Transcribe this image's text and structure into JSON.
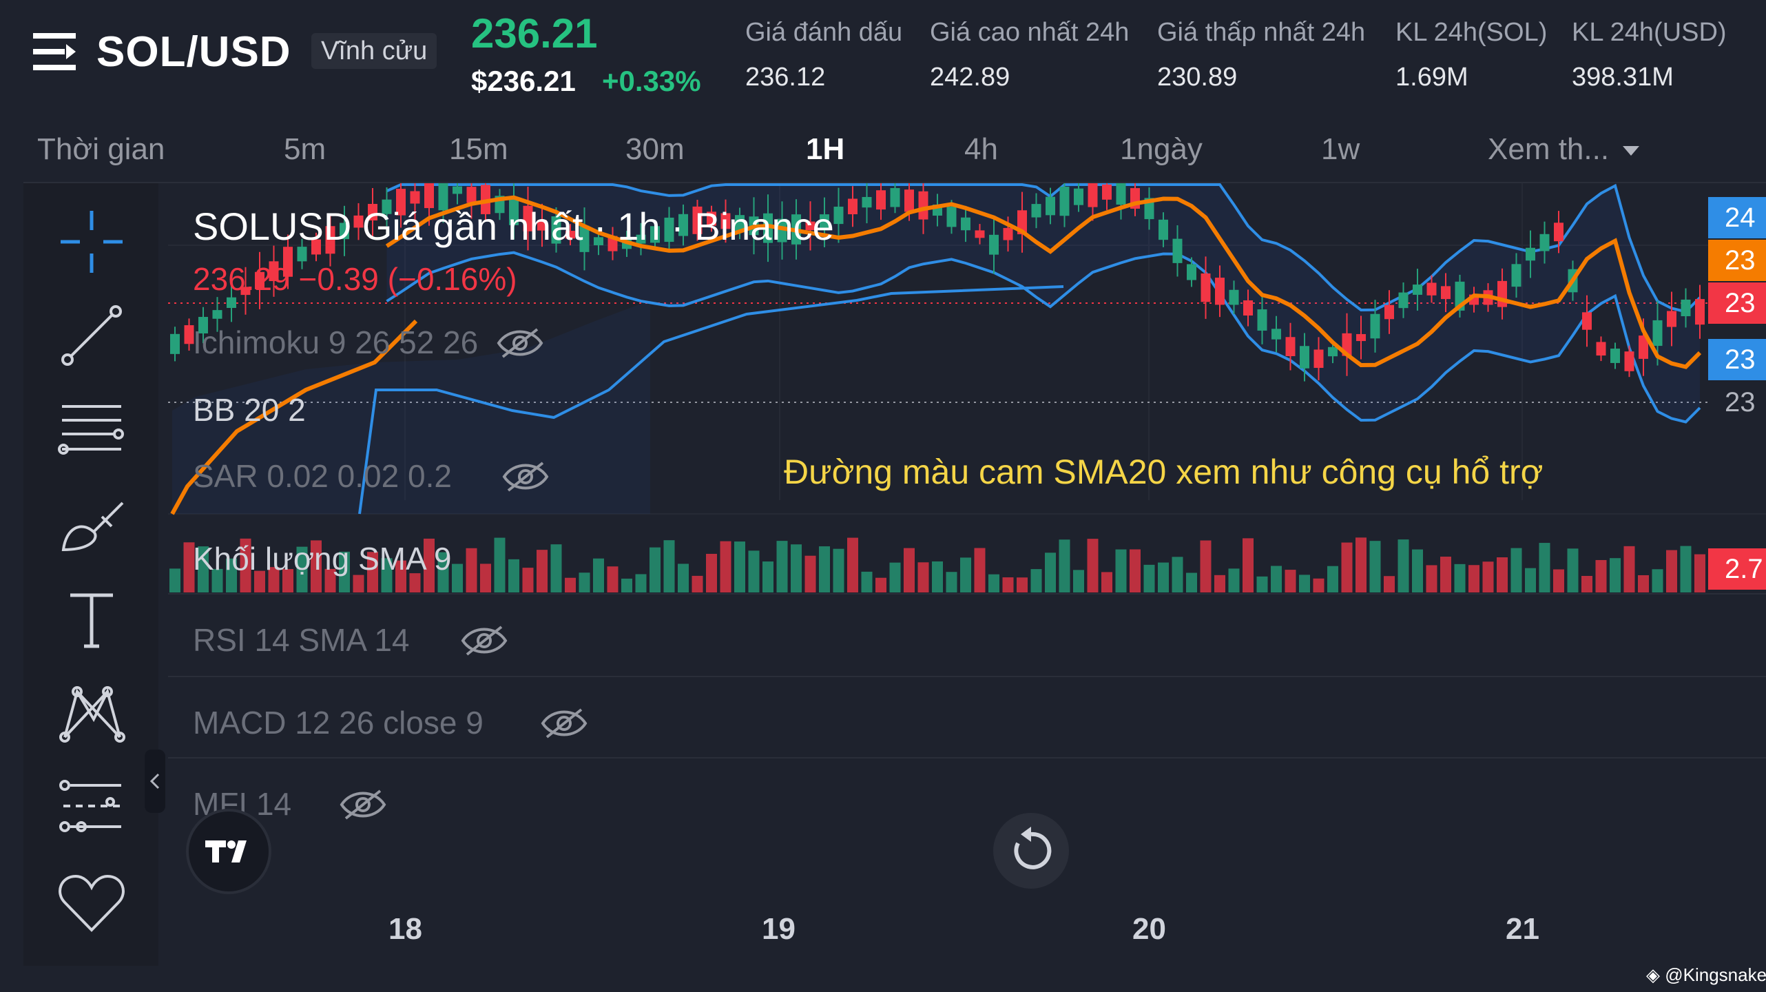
{
  "header": {
    "symbol": "SOL/USD",
    "contract_type": "Vĩnh cửu",
    "last_price": "236.21",
    "price_usd": "$236.21",
    "change_pct": "+0.33%",
    "stats": [
      {
        "label": "Giá đánh dấu",
        "value": "236.12"
      },
      {
        "label": "Giá cao nhất 24h",
        "value": "242.89"
      },
      {
        "label": "Giá thấp nhất 24h",
        "value": "230.89"
      },
      {
        "label": "KL 24h(SOL)",
        "value": "1.69M"
      },
      {
        "label": "KL 24h(USD)",
        "value": "398.31M"
      }
    ]
  },
  "intervals": {
    "time_label": "Thời gian",
    "items": [
      "5m",
      "15m",
      "30m",
      "1H",
      "4h",
      "1ngày",
      "1w"
    ],
    "active": "1H",
    "more": "Xem th..."
  },
  "toolbar": {
    "icons": [
      "crosshair-icon",
      "trend-line-icon",
      "horizontal-lines-icon",
      "brush-icon",
      "text-icon",
      "pattern-icon",
      "prediction-icon",
      "favorites-heart-icon"
    ]
  },
  "chart": {
    "legend_title": "SOLUSD Giá gần nhất · 1h · Binance",
    "legend_last": "236.29  −0.39 (−0.16%)",
    "indicators": {
      "ichimoku": "Ichimoku 9 26 52 26",
      "bb": "BB 20 2",
      "sar": "SAR 0.02 0.02 0.2",
      "volume": "Khối lượng SMA 9",
      "rsi": "RSI 14 SMA 14",
      "macd": "MACD 12 26 close 9",
      "mfi": "MFI 14"
    },
    "annotation": "Đường màu cam SMA20 xem như công cụ hổ trợ",
    "price_tags": [
      "24",
      "23",
      "23",
      "23",
      "23"
    ],
    "volume_tag": "2.7",
    "x_labels": [
      "18",
      "19",
      "20",
      "21"
    ],
    "colors": {
      "up": "#26a17b",
      "down": "#f23645",
      "sma": "#f57c00",
      "band": "#2f8ee6",
      "annotation": "#f5d547"
    },
    "watermark": "@Kingsnake"
  }
}
